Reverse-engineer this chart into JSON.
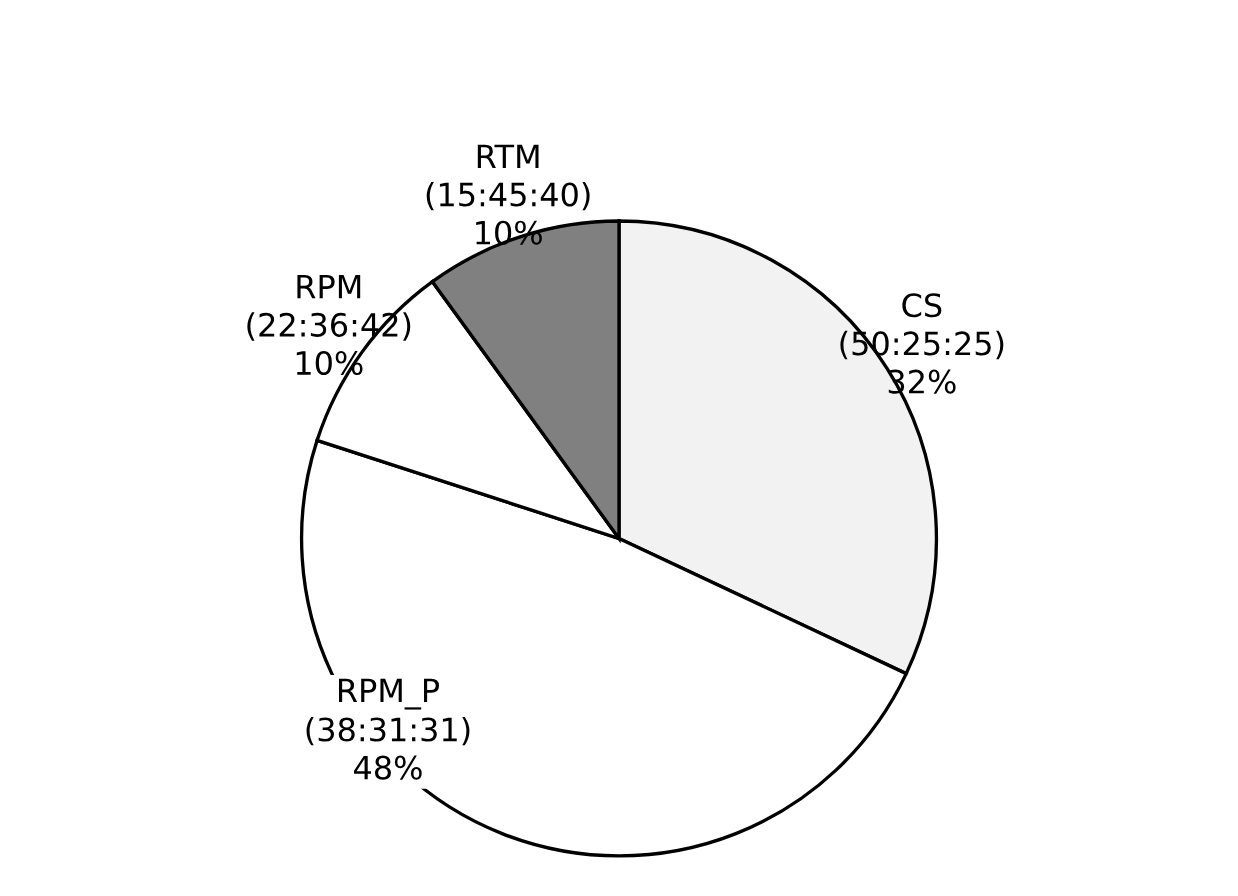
{
  "chart_data": {
    "type": "pie",
    "categories": [
      "CS\n(50:25:25)",
      "RPM_P\n(38:31:31)",
      "RPM\n(22:36:42)",
      "RTM\n(15:45:40)"
    ],
    "values": [
      32,
      48,
      10,
      10
    ],
    "value_labels": [
      "32%",
      "48%",
      "10%",
      "10%"
    ],
    "data_labels": true,
    "colors": [
      "#f2f2f2",
      "#ffffff",
      "#ffffff",
      "#808080"
    ]
  }
}
